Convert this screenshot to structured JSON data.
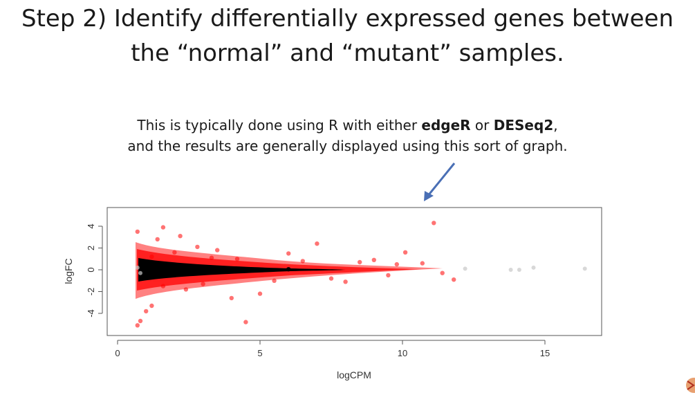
{
  "slide": {
    "title_line1": "Step 2) Identify differentially expressed genes between",
    "title_line2": "the “normal” and “mutant” samples.",
    "subtitle_line1_pre": "This is typically done using R with either ",
    "subtitle_edger": "edgeR",
    "subtitle_or": " or ",
    "subtitle_deseq2": "DESeq2",
    "subtitle_line1_post": ",",
    "subtitle_line2": "and the results are generally displayed using this sort of graph.",
    "arrow_color": "#4a6fb5"
  },
  "chart_data": {
    "type": "scatter",
    "xlabel": "logCPM",
    "ylabel": "logFC",
    "xlim": [
      0,
      17
    ],
    "ylim": [
      -5.5,
      5
    ],
    "x_ticks": [
      0,
      5,
      10,
      15
    ],
    "y_ticks": [
      -4,
      -2,
      0,
      2,
      4
    ],
    "grid": false,
    "series": [
      {
        "color": "#000000",
        "values": [
          [
            0.8,
            0.1
          ],
          [
            0.9,
            -0.2
          ],
          [
            1.0,
            0.3
          ],
          [
            1.2,
            -0.4
          ],
          [
            1.5,
            0.2
          ],
          [
            2.0,
            -0.2
          ],
          [
            3.0,
            0.1
          ],
          [
            4.0,
            -0.1
          ],
          [
            6.0,
            0.05
          ]
        ]
      },
      {
        "color": "#ff0000",
        "values": [
          [
            0.7,
            3.5
          ],
          [
            1.6,
            3.9
          ],
          [
            0.8,
            -4.7
          ],
          [
            0.7,
            -5.1
          ],
          [
            1.0,
            -3.8
          ],
          [
            1.2,
            -3.3
          ],
          [
            1.4,
            2.8
          ],
          [
            2.2,
            3.1
          ],
          [
            2.8,
            2.1
          ],
          [
            3.5,
            1.8
          ],
          [
            4.5,
            -4.8
          ],
          [
            4.0,
            -2.6
          ],
          [
            5.0,
            -2.2
          ],
          [
            6.0,
            1.5
          ],
          [
            7.0,
            2.4
          ],
          [
            8.0,
            -1.1
          ],
          [
            9.0,
            0.9
          ],
          [
            9.8,
            0.5
          ],
          [
            10.1,
            1.6
          ],
          [
            10.7,
            0.6
          ],
          [
            11.1,
            4.3
          ],
          [
            11.4,
            -0.3
          ],
          [
            11.8,
            -0.9
          ],
          [
            1.2,
            1.2
          ],
          [
            1.6,
            -1.5
          ],
          [
            2.0,
            1.6
          ],
          [
            2.4,
            -1.8
          ],
          [
            3.0,
            -1.3
          ],
          [
            3.3,
            1.1
          ],
          [
            4.2,
            1.0
          ],
          [
            5.5,
            -1.0
          ],
          [
            6.5,
            0.8
          ],
          [
            7.5,
            -0.8
          ],
          [
            8.5,
            0.7
          ],
          [
            9.5,
            -0.5
          ]
        ]
      },
      {
        "color": "#c8c8c8",
        "values": [
          [
            0.7,
            0.2
          ],
          [
            0.8,
            -0.3
          ],
          [
            12.2,
            0.1
          ],
          [
            13.8,
            0.0
          ],
          [
            14.1,
            0.0
          ],
          [
            14.6,
            0.2
          ],
          [
            16.4,
            0.1
          ]
        ]
      }
    ]
  }
}
